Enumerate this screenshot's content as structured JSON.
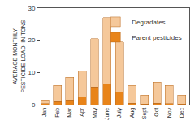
{
  "chart_data": {
    "type": "bar",
    "stacked": true,
    "y_label": "AVERAGE MONTHLY PESTICIDE LOAD, IN TONS",
    "categories": [
      "Jan",
      "Feb",
      "Mar",
      "Apr",
      "May",
      "June",
      "July",
      "Aug",
      "Sept",
      "Oct",
      "Nov",
      "Dec"
    ],
    "series": [
      {
        "name": "Parent pesticides",
        "color": "#e8841a",
        "values": [
          0.3,
          1,
          1.5,
          2.5,
          5.5,
          6.5,
          4,
          0.5,
          0.2,
          0.5,
          0.3,
          0.2
        ]
      },
      {
        "name": "Degradates",
        "color": "#f5c89a",
        "values": [
          1.2,
          5,
          7,
          8,
          15,
          20.5,
          15.5,
          5.5,
          2.8,
          6.5,
          5.7,
          2.8
        ]
      }
    ],
    "ylim": [
      0,
      30
    ],
    "yticks": [
      0,
      10,
      20,
      30
    ],
    "grid": false,
    "legend": "top right"
  }
}
